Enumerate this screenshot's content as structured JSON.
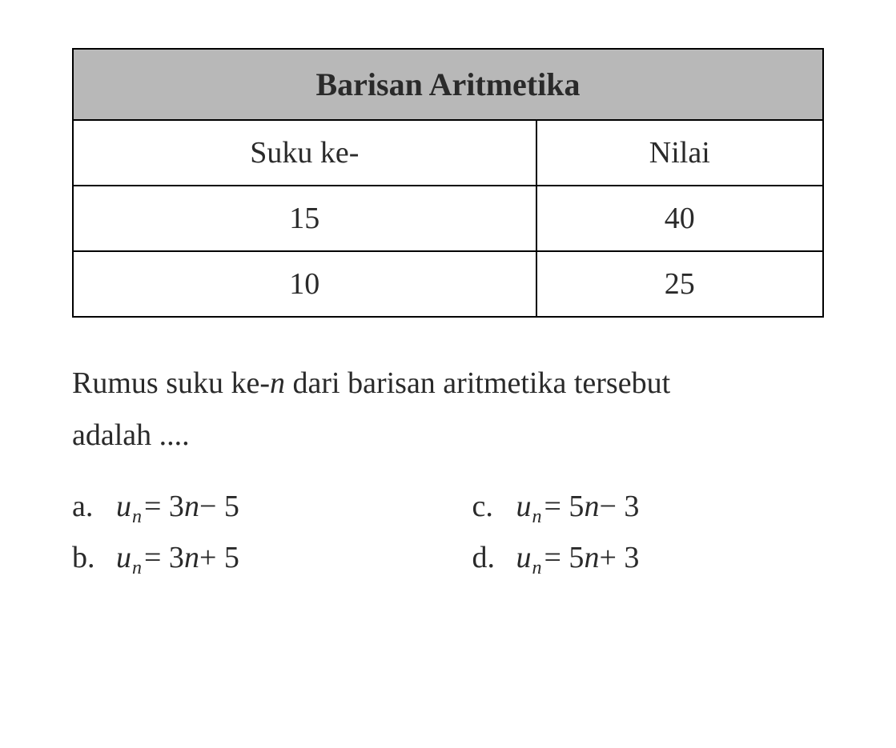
{
  "table": {
    "title": "Barisan Aritmetika",
    "columns": [
      "Suku ke-",
      "Nilai"
    ],
    "rows": [
      [
        "15",
        "40"
      ],
      [
        "10",
        "25"
      ]
    ],
    "header_bg_color": "#b8b8b8",
    "border_color": "#000000",
    "font_size": 38,
    "title_font_size": 40
  },
  "question": {
    "line1_prefix": "Rumus suku ke-",
    "line1_var": "n",
    "line1_suffix": " dari barisan aritmetika tersebut",
    "line2": "adalah ...."
  },
  "options": {
    "a": {
      "label": "a.",
      "var": "u",
      "sub": "n",
      "eq": " = 3",
      "var2": "n",
      "rest": " − 5"
    },
    "b": {
      "label": "b.",
      "var": "u",
      "sub": "n",
      "eq": " = 3",
      "var2": "n",
      "rest": " + 5"
    },
    "c": {
      "label": "c.",
      "var": "u",
      "sub": "n",
      "eq": " = 5",
      "var2": "n",
      "rest": " − 3"
    },
    "d": {
      "label": "d.",
      "var": "u",
      "sub": "n",
      "eq": " = 5",
      "var2": "n",
      "rest": " + 3"
    }
  },
  "colors": {
    "background": "#ffffff",
    "text": "#2a2a2a"
  }
}
